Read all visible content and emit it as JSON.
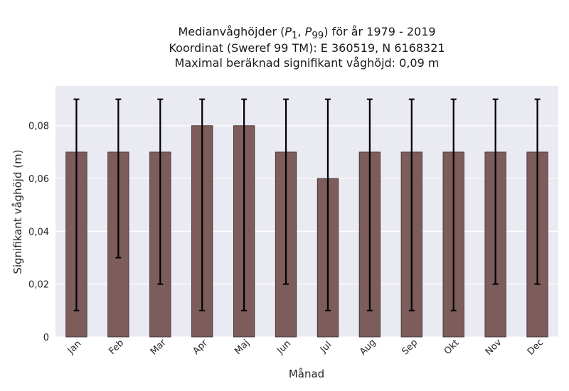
{
  "chart_data": {
    "type": "bar",
    "title_lines": [
      "Medianvåghöjder (P1, P99) för år 1979 - 2019",
      "Koordinat (Sweref 99 TM): E 360519, N 6168321",
      "Maximal beräknad signifikant våghöjd: 0,09 m"
    ],
    "title_parts": {
      "prefix": "Medianvåghöjder (",
      "p": "P",
      "sub1": "1",
      "sep": ", ",
      "sub99": "99",
      "suffix": ") för år 1979 - 2019"
    },
    "xlabel": "Månad",
    "ylabel": "Signifikant våghöjd (m)",
    "categories": [
      "Jan",
      "Feb",
      "Mar",
      "Apr",
      "Maj",
      "Jun",
      "Jul",
      "Aug",
      "Sep",
      "Okt",
      "Nov",
      "Dec"
    ],
    "values": [
      0.07,
      0.07,
      0.07,
      0.08,
      0.08,
      0.07,
      0.06,
      0.07,
      0.07,
      0.07,
      0.07,
      0.07
    ],
    "error_low": [
      0.01,
      0.03,
      0.02,
      0.01,
      0.01,
      0.02,
      0.01,
      0.01,
      0.01,
      0.01,
      0.02,
      0.02
    ],
    "error_high": [
      0.09,
      0.09,
      0.09,
      0.09,
      0.09,
      0.09,
      0.09,
      0.09,
      0.09,
      0.09,
      0.09,
      0.09
    ],
    "ylim": [
      0,
      0.095
    ],
    "yticks": [
      0,
      0.02,
      0.04,
      0.06,
      0.08
    ],
    "ytick_labels": [
      "0",
      "0,02",
      "0,04",
      "0,06",
      "0,08"
    ],
    "grid": true,
    "colors": {
      "bar": "#7d5c5c",
      "bar_edge": "#3a2a2a",
      "error": "#000000",
      "plot_bg": "#eaeaf2",
      "grid": "#ffffff"
    }
  }
}
